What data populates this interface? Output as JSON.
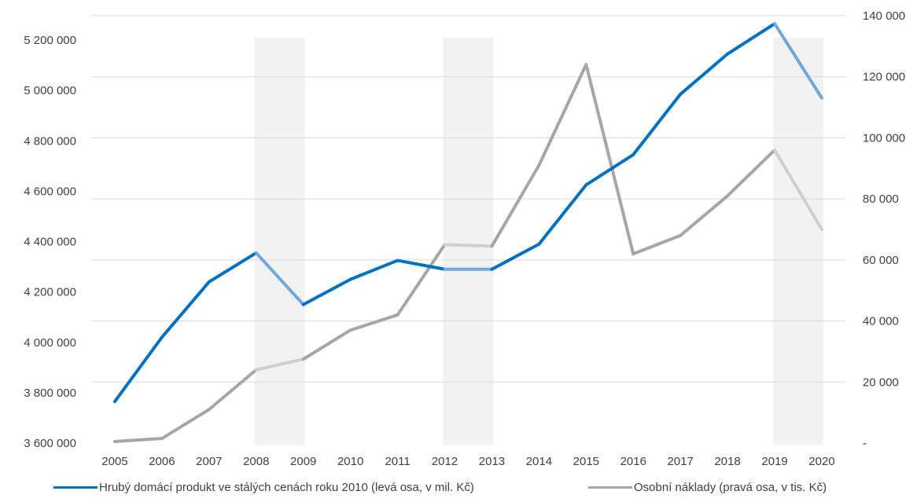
{
  "chart_data": {
    "type": "line",
    "categories": [
      "2005",
      "2006",
      "2007",
      "2008",
      "2009",
      "2010",
      "2011",
      "2012",
      "2013",
      "2014",
      "2015",
      "2016",
      "2017",
      "2018",
      "2019",
      "2020"
    ],
    "series": [
      {
        "name": "Hrubý domácí produkt ve stálých cenách roku 2010 (levá osa, v mil. Kč)",
        "axis": "left",
        "color": "#0070c0",
        "recession_color": "#6fa8dc",
        "values": [
          3765000,
          4020000,
          4240000,
          4355000,
          4150000,
          4250000,
          4325000,
          4290000,
          4290000,
          4390000,
          4625000,
          4745000,
          4985000,
          5145000,
          5265000,
          4970000
        ]
      },
      {
        "name": "Osobní náklady (pravá osa, v tis. Kč)",
        "axis": "right",
        "color": "#a6a6a6",
        "recession_color": "#cfcfcf",
        "values": [
          500,
          1500,
          11000,
          24000,
          27500,
          37000,
          42000,
          65000,
          64500,
          91000,
          124000,
          62000,
          68000,
          81000,
          96000,
          70000
        ]
      }
    ],
    "recession_periods": [
      [
        "2008",
        "2009"
      ],
      [
        "2012",
        "2013"
      ],
      [
        "2019",
        "2020"
      ]
    ],
    "y_left": {
      "range": [
        3600000,
        5200000
      ],
      "ticks": [
        3600000,
        3800000,
        4000000,
        4200000,
        4400000,
        4600000,
        4800000,
        5000000,
        5200000
      ],
      "tick_labels": [
        "3 600 000",
        "3 800 000",
        "4 000 000",
        "4 200 000",
        "4 400 000",
        "4 600 000",
        "4 800 000",
        "5 000 000",
        "5 200 000"
      ]
    },
    "y_right": {
      "range": [
        0,
        140000
      ],
      "ticks": [
        0,
        20000,
        40000,
        60000,
        80000,
        100000,
        120000,
        140000
      ],
      "tick_labels": [
        "-",
        "20 000",
        "40 000",
        "60 000",
        "80 000",
        "100 000",
        "120 000",
        "140 000"
      ]
    },
    "grid": true,
    "legend_position": "bottom",
    "shading_color": "#f2f2f2",
    "grid_color": "#d9d9d9"
  }
}
